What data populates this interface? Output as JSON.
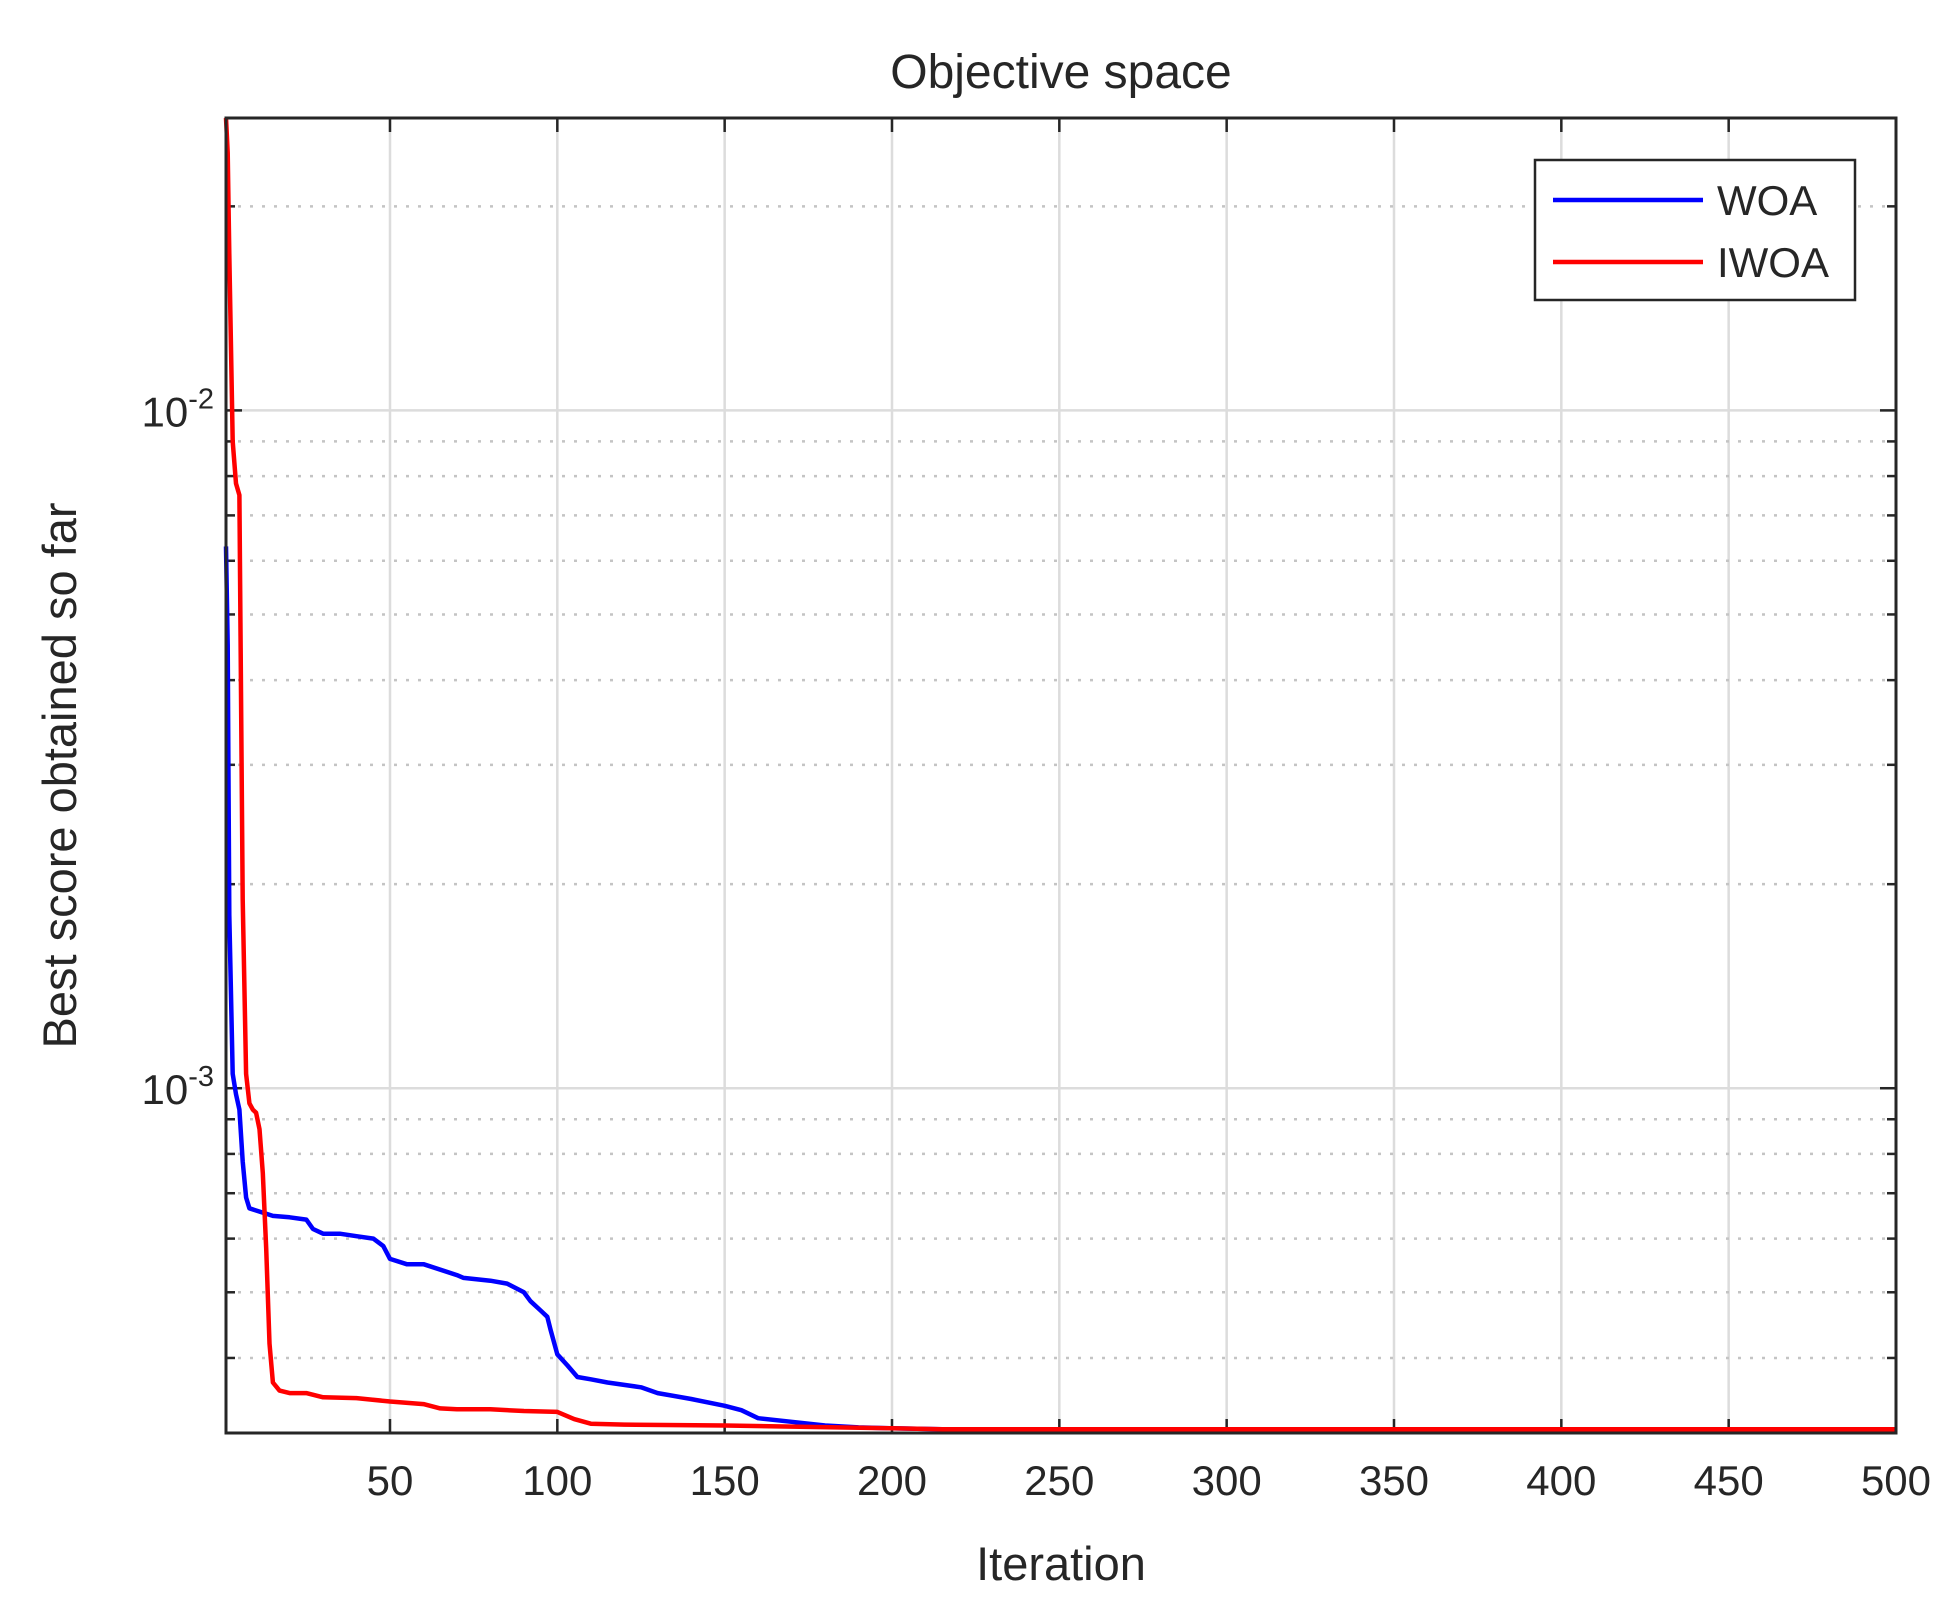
{
  "chart_data": {
    "type": "line",
    "title": "Objective space",
    "xlabel": "Iteration",
    "ylabel": "Best score obtained so far",
    "xlim": [
      1,
      500
    ],
    "ylim": [
      0.00031,
      0.027
    ],
    "yscale": "log",
    "grid": true,
    "legend_position": "top-right",
    "x_ticks": [
      {
        "value": 50,
        "label": "50"
      },
      {
        "value": 100,
        "label": "100"
      },
      {
        "value": 150,
        "label": "150"
      },
      {
        "value": 200,
        "label": "200"
      },
      {
        "value": 250,
        "label": "250"
      },
      {
        "value": 300,
        "label": "300"
      },
      {
        "value": 350,
        "label": "350"
      },
      {
        "value": 400,
        "label": "400"
      },
      {
        "value": 450,
        "label": "450"
      },
      {
        "value": 500,
        "label": "500"
      }
    ],
    "y_ticks": [
      {
        "value": 0.001,
        "base": "10",
        "exponent": "-3"
      },
      {
        "value": 0.01,
        "base": "10",
        "exponent": "-2"
      }
    ],
    "series": [
      {
        "name": "WOA",
        "color": "#0000ff",
        "x": [
          1,
          1.5,
          2,
          3,
          4,
          5,
          6,
          7,
          8,
          10,
          15,
          20,
          25,
          27,
          30,
          35,
          40,
          45,
          48,
          50,
          55,
          60,
          70,
          72,
          80,
          85,
          90,
          92,
          95,
          97,
          98,
          100,
          103,
          106,
          110,
          115,
          125,
          130,
          140,
          150,
          155,
          160,
          170,
          180,
          190,
          200,
          215,
          500
        ],
        "values": [
          0.0063,
          0.0045,
          0.0018,
          0.00105,
          0.00098,
          0.00093,
          0.00078,
          0.00069,
          0.000665,
          0.00066,
          0.000648,
          0.000645,
          0.00064,
          0.00062,
          0.00061,
          0.00061,
          0.000605,
          0.0006,
          0.000585,
          0.00056,
          0.00055,
          0.00055,
          0.00053,
          0.000525,
          0.00052,
          0.000515,
          0.0005,
          0.000485,
          0.00047,
          0.00046,
          0.00044,
          0.000405,
          0.00039,
          0.000375,
          0.000372,
          0.000368,
          0.000362,
          0.000355,
          0.000348,
          0.00034,
          0.000335,
          0.000326,
          0.000322,
          0.000318,
          0.000316,
          0.000315,
          0.000314,
          0.000314
        ]
      },
      {
        "name": "IWOA",
        "color": "#ff0000",
        "x": [
          1,
          1.5,
          2,
          3,
          4,
          5,
          6,
          7,
          8,
          9,
          10,
          11,
          12,
          13,
          14,
          15,
          17,
          20,
          25,
          30,
          40,
          50,
          60,
          65,
          70,
          80,
          90,
          100,
          105,
          110,
          120,
          150,
          200,
          215,
          500
        ],
        "values": [
          0.027,
          0.024,
          0.017,
          0.009,
          0.0078,
          0.0075,
          0.0019,
          0.00105,
          0.00095,
          0.00093,
          0.00092,
          0.00087,
          0.00075,
          0.00058,
          0.00042,
          0.000368,
          0.000358,
          0.000355,
          0.000355,
          0.00035,
          0.000349,
          0.000345,
          0.000342,
          0.000337,
          0.000336,
          0.000336,
          0.000334,
          0.000333,
          0.000325,
          0.00032,
          0.000319,
          0.000318,
          0.000315,
          0.000314,
          0.000314
        ]
      }
    ]
  }
}
